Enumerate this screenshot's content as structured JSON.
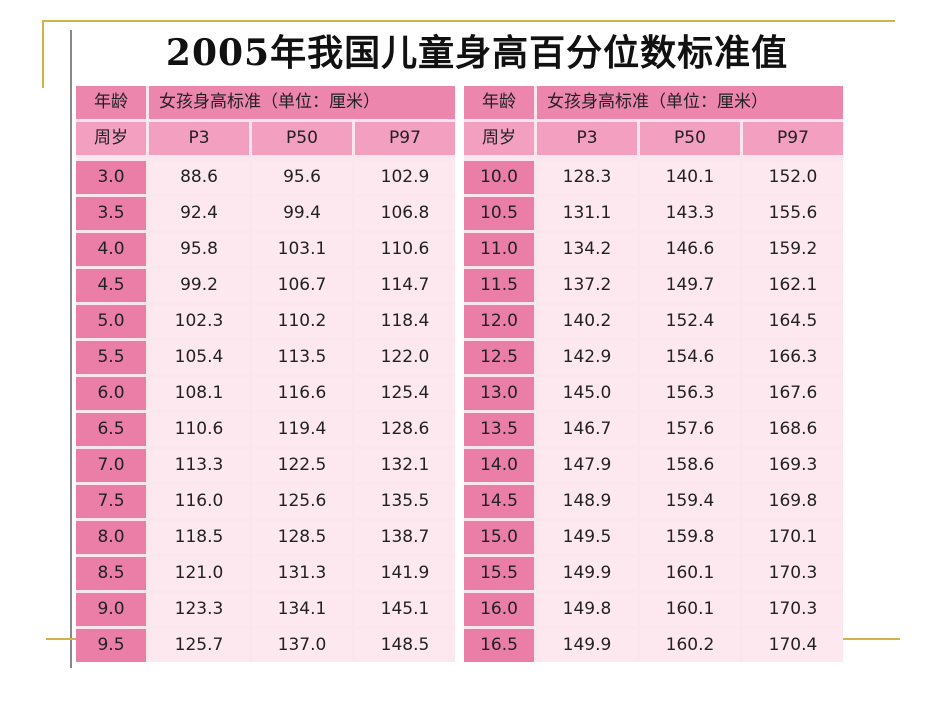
{
  "title": "2005年我国儿童身高百分位数标准值",
  "left_table": {
    "age_label": "年龄",
    "group_label": "女孩身高标准（单位：厘米）",
    "age_unit_label": "周岁",
    "percentiles": [
      "P3",
      "P50",
      "P97"
    ],
    "rows": [
      {
        "age": "3.0",
        "p3": "88.6",
        "p50": "95.6",
        "p97": "102.9"
      },
      {
        "age": "3.5",
        "p3": "92.4",
        "p50": "99.4",
        "p97": "106.8"
      },
      {
        "age": "4.0",
        "p3": "95.8",
        "p50": "103.1",
        "p97": "110.6"
      },
      {
        "age": "4.5",
        "p3": "99.2",
        "p50": "106.7",
        "p97": "114.7"
      },
      {
        "age": "5.0",
        "p3": "102.3",
        "p50": "110.2",
        "p97": "118.4"
      },
      {
        "age": "5.5",
        "p3": "105.4",
        "p50": "113.5",
        "p97": "122.0"
      },
      {
        "age": "6.0",
        "p3": "108.1",
        "p50": "116.6",
        "p97": "125.4"
      },
      {
        "age": "6.5",
        "p3": "110.6",
        "p50": "119.4",
        "p97": "128.6"
      },
      {
        "age": "7.0",
        "p3": "113.3",
        "p50": "122.5",
        "p97": "132.1"
      },
      {
        "age": "7.5",
        "p3": "116.0",
        "p50": "125.6",
        "p97": "135.5"
      },
      {
        "age": "8.0",
        "p3": "118.5",
        "p50": "128.5",
        "p97": "138.7"
      },
      {
        "age": "8.5",
        "p3": "121.0",
        "p50": "131.3",
        "p97": "141.9"
      },
      {
        "age": "9.0",
        "p3": "123.3",
        "p50": "134.1",
        "p97": "145.1"
      },
      {
        "age": "9.5",
        "p3": "125.7",
        "p50": "137.0",
        "p97": "148.5"
      }
    ]
  },
  "right_table": {
    "age_label": "年龄",
    "group_label": "女孩身高标准（单位：厘米）",
    "age_unit_label": "周岁",
    "percentiles": [
      "P3",
      "P50",
      "P97"
    ],
    "rows": [
      {
        "age": "10.0",
        "p3": "128.3",
        "p50": "140.1",
        "p97": "152.0"
      },
      {
        "age": "10.5",
        "p3": "131.1",
        "p50": "143.3",
        "p97": "155.6"
      },
      {
        "age": "11.0",
        "p3": "134.2",
        "p50": "146.6",
        "p97": "159.2"
      },
      {
        "age": "11.5",
        "p3": "137.2",
        "p50": "149.7",
        "p97": "162.1"
      },
      {
        "age": "12.0",
        "p3": "140.2",
        "p50": "152.4",
        "p97": "164.5"
      },
      {
        "age": "12.5",
        "p3": "142.9",
        "p50": "154.6",
        "p97": "166.3"
      },
      {
        "age": "13.0",
        "p3": "145.0",
        "p50": "156.3",
        "p97": "167.6"
      },
      {
        "age": "13.5",
        "p3": "146.7",
        "p50": "157.6",
        "p97": "168.6"
      },
      {
        "age": "14.0",
        "p3": "147.9",
        "p50": "158.6",
        "p97": "169.3"
      },
      {
        "age": "14.5",
        "p3": "148.9",
        "p50": "159.4",
        "p97": "169.8"
      },
      {
        "age": "15.0",
        "p3": "149.5",
        "p50": "159.8",
        "p97": "170.1"
      },
      {
        "age": "15.5",
        "p3": "149.9",
        "p50": "160.1",
        "p97": "170.3"
      },
      {
        "age": "16.0",
        "p3": "149.8",
        "p50": "160.1",
        "p97": "170.3"
      },
      {
        "age": "16.5",
        "p3": "149.9",
        "p50": "160.2",
        "p97": "170.4"
      }
    ]
  }
}
